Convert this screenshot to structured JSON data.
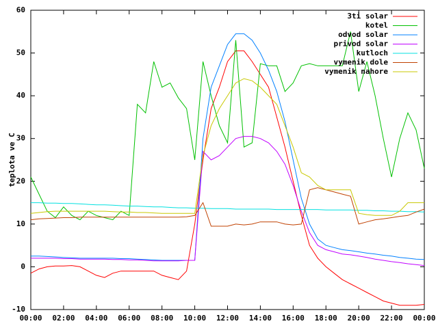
{
  "chart_data": {
    "type": "line",
    "ylabel": "teplota ve C",
    "xlim": [
      0,
      24
    ],
    "xticks": [
      {
        "value": 0,
        "label": "00:00"
      },
      {
        "value": 2,
        "label": "02:00"
      },
      {
        "value": 4,
        "label": "04:00"
      },
      {
        "value": 6,
        "label": "06:00"
      },
      {
        "value": 8,
        "label": "08:00"
      },
      {
        "value": 10,
        "label": "10:00"
      },
      {
        "value": 12,
        "label": "12:00"
      },
      {
        "value": 14,
        "label": "14:00"
      },
      {
        "value": 16,
        "label": "16:00"
      },
      {
        "value": 18,
        "label": "18:00"
      },
      {
        "value": 20,
        "label": "20:00"
      },
      {
        "value": 22,
        "label": "22:00"
      },
      {
        "value": 24,
        "label": "00:00"
      }
    ],
    "ylim": [
      -10,
      60
    ],
    "yticks": [
      -10,
      0,
      10,
      20,
      30,
      40,
      50,
      60
    ],
    "legend": "top-right",
    "x": [
      0,
      0.5,
      1,
      1.5,
      2,
      2.5,
      3,
      3.5,
      4,
      4.5,
      5,
      5.5,
      6,
      6.5,
      7,
      7.5,
      8,
      8.5,
      9,
      9.5,
      10,
      10.5,
      11,
      11.5,
      12,
      12.5,
      13,
      13.5,
      14,
      14.5,
      15,
      15.5,
      16,
      16.5,
      17,
      17.5,
      18,
      18.5,
      19,
      19.5,
      20,
      20.5,
      21,
      21.5,
      22,
      22.5,
      23,
      23.5,
      24
    ],
    "series": [
      {
        "name": "3ti solar",
        "color": "#ff0000",
        "values": [
          -1.5,
          -0.5,
          0,
          0.2,
          0.2,
          0.3,
          0,
          -1,
          -2,
          -2.5,
          -1.5,
          -1,
          -1,
          -1,
          -1,
          -1,
          -2,
          -2.5,
          -3,
          -1,
          10,
          25,
          37,
          42,
          48,
          50.5,
          50.5,
          48,
          45,
          42,
          35,
          28,
          20,
          12,
          5,
          2,
          0,
          -1.5,
          -3,
          -4,
          -5,
          -6,
          -7,
          -8,
          -8.5,
          -9,
          -9,
          -9,
          -8.8
        ]
      },
      {
        "name": "kotel",
        "color": "#00c000",
        "values": [
          21,
          17,
          13,
          11.5,
          14,
          12,
          11,
          13,
          12,
          11.5,
          11,
          13,
          12,
          38,
          36,
          48,
          42,
          43,
          39.5,
          37,
          25,
          48,
          40,
          33,
          29,
          53,
          28,
          29,
          47.5,
          47,
          47,
          41,
          43,
          47,
          47.5,
          47,
          47,
          47,
          47,
          55,
          41,
          48,
          40,
          30,
          21,
          30,
          36,
          32,
          23
        ]
      },
      {
        "name": "odvod solar",
        "color": "#0080ff",
        "values": [
          2.5,
          2.5,
          2.4,
          2.3,
          2.2,
          2.1,
          2,
          2,
          2,
          2,
          2,
          1.9,
          1.9,
          1.8,
          1.7,
          1.6,
          1.5,
          1.5,
          1.5,
          1.5,
          1.5,
          30,
          42,
          47,
          52,
          54.5,
          54.5,
          53,
          50,
          46,
          41,
          34,
          25,
          16,
          10,
          6.5,
          5,
          4.5,
          4,
          3.8,
          3.5,
          3.2,
          3,
          2.7,
          2.5,
          2.2,
          2,
          1.8,
          1.7
        ]
      },
      {
        "name": "privod solar",
        "color": "#c000ff",
        "values": [
          2,
          2,
          2,
          2,
          1.9,
          1.9,
          1.8,
          1.8,
          1.8,
          1.8,
          1.7,
          1.7,
          1.6,
          1.6,
          1.5,
          1.4,
          1.4,
          1.4,
          1.4,
          1.5,
          1.5,
          27,
          25,
          26,
          28,
          30,
          30.5,
          30.5,
          30,
          29,
          27,
          24,
          19,
          13,
          8,
          5,
          4,
          3.5,
          3,
          2.8,
          2.5,
          2.2,
          1.8,
          1.5,
          1.2,
          1,
          0.7,
          0.5,
          0.3
        ]
      },
      {
        "name": "kutloch",
        "color": "#00e0e0",
        "values": [
          15,
          15,
          14.9,
          14.9,
          14.8,
          14.8,
          14.7,
          14.6,
          14.5,
          14.5,
          14.4,
          14.3,
          14.2,
          14.2,
          14.1,
          14,
          14,
          13.9,
          13.8,
          13.8,
          13.7,
          13.7,
          13.6,
          13.6,
          13.6,
          13.5,
          13.5,
          13.5,
          13.5,
          13.5,
          13.4,
          13.4,
          13.4,
          13.4,
          13.4,
          13.4,
          13.3,
          13.3,
          13.3,
          13.3,
          13.2,
          13.2,
          13.1,
          13.1,
          13,
          13,
          12.9,
          12.9,
          12.8
        ]
      },
      {
        "name": "vymenik dole",
        "color": "#c04000",
        "values": [
          11,
          11.2,
          11.3,
          11.4,
          11.5,
          11.5,
          11.6,
          11.6,
          11.6,
          11.6,
          11.6,
          11.6,
          11.6,
          11.6,
          11.6,
          11.6,
          11.6,
          11.6,
          11.6,
          11.7,
          12,
          15,
          9.5,
          9.5,
          9.5,
          10,
          9.8,
          10,
          10.5,
          10.5,
          10.5,
          10,
          9.8,
          10,
          18,
          18.5,
          18,
          17.5,
          17,
          16.5,
          10,
          10.5,
          11,
          11.2,
          11.5,
          11.8,
          12,
          12.8,
          13.5
        ]
      },
      {
        "name": "vymenik nahore",
        "color": "#c8c800",
        "values": [
          12.5,
          12.7,
          12.9,
          13,
          13,
          13,
          13,
          13,
          13,
          13,
          12.9,
          12.8,
          12.8,
          12.7,
          12.7,
          12.6,
          12.5,
          12.5,
          12.5,
          12.5,
          12.5,
          26,
          33,
          37,
          40,
          43,
          44,
          43.5,
          42,
          40,
          38,
          33,
          28,
          22,
          21,
          19,
          18,
          18,
          18,
          18,
          12.5,
          12.2,
          12,
          12,
          12,
          13,
          15,
          15,
          15
        ]
      }
    ]
  }
}
